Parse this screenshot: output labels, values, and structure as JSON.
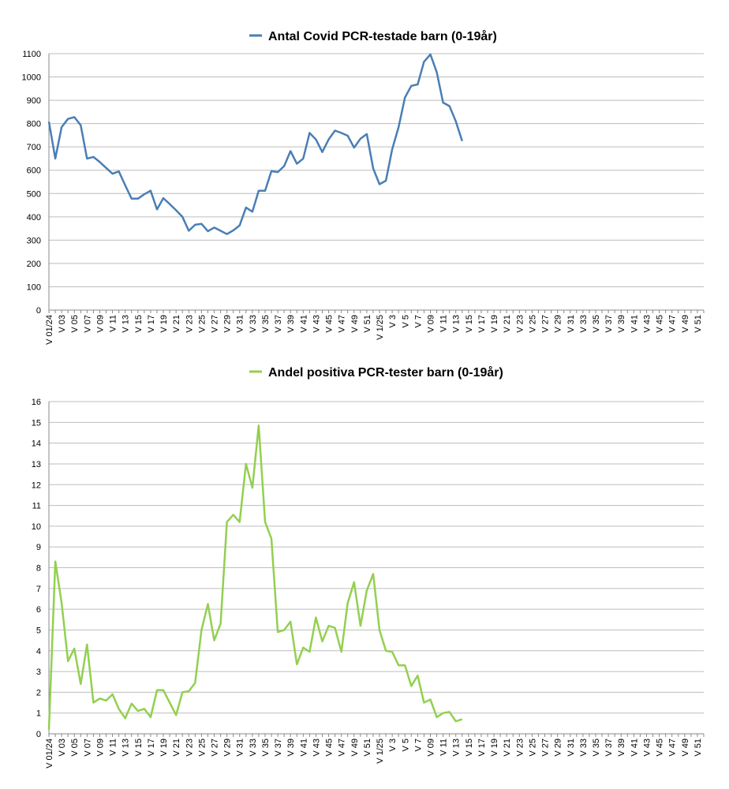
{
  "chart_data": [
    {
      "type": "line",
      "categories": [
        "V 01/24",
        null,
        "V 03",
        null,
        "V 05",
        null,
        "V 07",
        null,
        "V 09",
        null,
        "V 11",
        null,
        "V 13",
        null,
        "V 15",
        null,
        "V 17",
        null,
        "V 19",
        null,
        "V 21",
        null,
        "V 23",
        null,
        "V 25",
        null,
        "V 27",
        null,
        "V 29",
        null,
        "V 31",
        null,
        "V 33",
        null,
        "V 35",
        null,
        "V 37",
        null,
        "V 39",
        null,
        "V 41",
        null,
        "V 43",
        null,
        "V 45",
        null,
        "V 47",
        null,
        "V 49",
        null,
        "V 51",
        null,
        "V 1/25",
        null,
        "V 3",
        null,
        "V 5",
        null,
        "V 7",
        null,
        "V 09",
        null,
        "V 11",
        null,
        "V 13",
        null,
        "V 15",
        null,
        "V 17",
        null,
        "V 19",
        null,
        "V 21",
        null,
        "V 23",
        null,
        "V 25",
        null,
        "V 27",
        null,
        "V 29",
        null,
        "V 31",
        null,
        "V 33",
        null,
        "V 35",
        null,
        "V 37",
        null,
        "V 39",
        null,
        "V 41",
        null,
        "V 43",
        null,
        "V 45",
        null,
        "V 47",
        null,
        "V 49",
        null,
        "V 51",
        null
      ],
      "series": [
        {
          "name": "Antal Covid PCR-testade barn (0-19år)",
          "color": "#4a7eb5",
          "values": [
            808,
            650,
            785,
            820,
            828,
            793,
            650,
            657,
            635,
            610,
            585,
            595,
            535,
            478,
            478,
            497,
            512,
            432,
            480,
            455,
            428,
            400,
            340,
            366,
            370,
            338,
            354,
            340,
            326,
            342,
            363,
            440,
            422,
            512,
            512,
            596,
            592,
            618,
            682,
            628,
            650,
            760,
            732,
            678,
            732,
            770,
            760,
            748,
            697,
            735,
            755,
            608,
            540,
            555,
            690,
            785,
            912,
            962,
            968,
            1065,
            1097,
            1020,
            890,
            875,
            810,
            725,
            null,
            null,
            null,
            null,
            null,
            null,
            null,
            null,
            null,
            null,
            null,
            null,
            null,
            null,
            null,
            null,
            null,
            null,
            null,
            null,
            null,
            null,
            null,
            null,
            null,
            null,
            null,
            null,
            null,
            null,
            null,
            null,
            null,
            null,
            null,
            null,
            null,
            null
          ]
        }
      ],
      "ylim": [
        0,
        1100
      ],
      "yticks": [
        0,
        100,
        200,
        300,
        400,
        500,
        600,
        700,
        800,
        900,
        1000,
        1100
      ],
      "grid": true
    },
    {
      "type": "line",
      "categories": [
        "V 01/24",
        null,
        "V 03",
        null,
        "V 05",
        null,
        "V 07",
        null,
        "V 09",
        null,
        "V 11",
        null,
        "V 13",
        null,
        "V 15",
        null,
        "V 17",
        null,
        "V 19",
        null,
        "V 21",
        null,
        "V 23",
        null,
        "V 25",
        null,
        "V 27",
        null,
        "V 29",
        null,
        "V 31",
        null,
        "V 33",
        null,
        "V 35",
        null,
        "V 37",
        null,
        "V 39",
        null,
        "V 41",
        null,
        "V 43",
        null,
        "V 45",
        null,
        "V 47",
        null,
        "V 49",
        null,
        "V 51",
        null,
        "V 1/25",
        null,
        "V 3",
        null,
        "V 5",
        null,
        "V 7",
        null,
        "V 09",
        null,
        "V 11",
        null,
        "V 13",
        null,
        "V 15",
        null,
        "V 17",
        null,
        "V 19",
        null,
        "V 21",
        null,
        "V 23",
        null,
        "V 25",
        null,
        "V 27",
        null,
        "V 29",
        null,
        "V 31",
        null,
        "V 33",
        null,
        "V 35",
        null,
        "V 37",
        null,
        "V 39",
        null,
        "V 41",
        null,
        "V 43",
        null,
        "V 45",
        null,
        "V 47",
        null,
        "V 49",
        null,
        "V 51",
        null
      ],
      "series": [
        {
          "name": "Andel positiva PCR-tester barn (0-19år)",
          "color": "#92d050",
          "values": [
            0.2,
            8.3,
            6.3,
            3.5,
            4.1,
            2.4,
            4.3,
            1.5,
            1.7,
            1.6,
            1.9,
            1.2,
            0.75,
            1.45,
            1.1,
            1.2,
            0.8,
            2.1,
            2.1,
            1.5,
            0.9,
            2.0,
            2.05,
            2.45,
            5.0,
            6.25,
            4.5,
            5.3,
            10.2,
            10.55,
            10.2,
            13.0,
            11.85,
            14.85,
            10.2,
            9.4,
            4.9,
            5.0,
            5.4,
            3.35,
            4.15,
            3.95,
            5.6,
            4.45,
            5.2,
            5.1,
            3.95,
            6.3,
            7.3,
            5.2,
            6.9,
            7.7,
            5.0,
            4.0,
            3.95,
            3.3,
            3.3,
            2.3,
            2.8,
            1.5,
            1.65,
            0.8,
            1.0,
            1.05,
            0.6,
            0.7,
            null,
            null,
            null,
            null,
            null,
            null,
            null,
            null,
            null,
            null,
            null,
            null,
            null,
            null,
            null,
            null,
            null,
            null,
            null,
            null,
            null,
            null,
            null,
            null,
            null,
            null,
            null,
            null,
            null,
            null,
            null,
            null,
            null,
            null,
            null,
            null,
            null,
            null
          ]
        }
      ],
      "ylim": [
        0,
        16
      ],
      "yticks": [
        0,
        1,
        2,
        3,
        4,
        5,
        6,
        7,
        8,
        9,
        10,
        11,
        12,
        13,
        14,
        15,
        16
      ],
      "grid": true
    }
  ]
}
